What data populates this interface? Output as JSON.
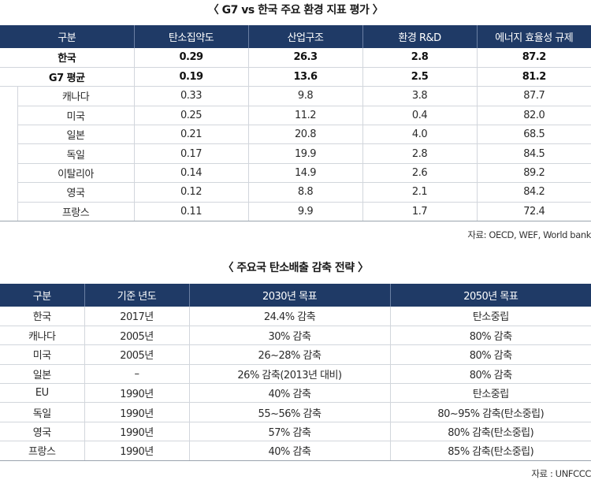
{
  "table1": {
    "title": "〈 G7 vs 한국 주요 환경 지표 평가 〉",
    "headers": [
      "구분",
      "탄소집약도",
      "산업구조",
      "환경 R&D",
      "에너지 효율성 규제"
    ],
    "highlight_rows": [
      [
        "한국",
        "0.29",
        "26.3",
        "2.8",
        "87.2"
      ],
      [
        "G7 평균",
        "0.19",
        "13.6",
        "2.5",
        "81.2"
      ]
    ],
    "rows": [
      [
        "캐나다",
        "0.33",
        "9.8",
        "3.8",
        "87.7"
      ],
      [
        "미국",
        "0.25",
        "11.2",
        "0.4",
        "82.0"
      ],
      [
        "일본",
        "0.21",
        "20.8",
        "4.0",
        "68.5"
      ],
      [
        "독일",
        "0.17",
        "19.9",
        "2.8",
        "84.5"
      ],
      [
        "이탈리아",
        "0.14",
        "14.9",
        "2.6",
        "89.2"
      ],
      [
        "영국",
        "0.12",
        "8.8",
        "2.1",
        "84.2"
      ],
      [
        "프랑스",
        "0.11",
        "9.9",
        "1.7",
        "72.4"
      ]
    ],
    "source": "자료: OECD, WEF, World bank"
  },
  "table2": {
    "title": "〈 주요국 탄소배출 감축 전략 〉",
    "headers": [
      "구분",
      "기준 년도",
      "2030년 목표",
      "2050년 목표"
    ],
    "rows": [
      [
        "한국",
        "2017년",
        "24.4% 감축",
        "탄소중립"
      ],
      [
        "캐나다",
        "2005년",
        "30% 감축",
        "80% 감축"
      ],
      [
        "미국",
        "2005년",
        "26~28% 감축",
        "80% 감축"
      ],
      [
        "일본",
        "–",
        "26% 감축(2013년 대비)",
        "80% 감축"
      ],
      [
        "EU",
        "1990년",
        "40% 감축",
        "탄소중립"
      ],
      [
        "독일",
        "1990년",
        "55~56% 감축",
        "80~95% 감축(탄소중립)"
      ],
      [
        "영국",
        "1990년",
        "57% 감축",
        "80% 감축(탄소중립)"
      ],
      [
        "프랑스",
        "1990년",
        "40% 감축",
        "85% 감축(탄소중립)"
      ]
    ],
    "source": "자료 : UNFCCC"
  }
}
